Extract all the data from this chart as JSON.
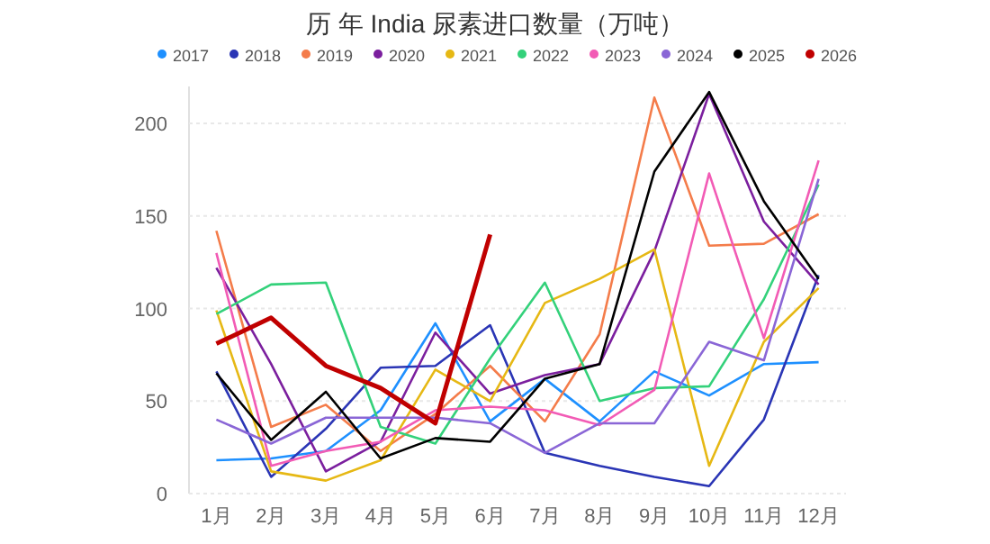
{
  "chart_data": {
    "type": "line",
    "title": "历 年 India 尿素进口数量（万吨）",
    "categories": [
      "1月",
      "2月",
      "3月",
      "4月",
      "5月",
      "6月",
      "7月",
      "8月",
      "9月",
      "10月",
      "11月",
      "12月"
    ],
    "ylim": [
      0,
      220
    ],
    "yticks": [
      0,
      50,
      100,
      150,
      200
    ],
    "grid": "y",
    "legend": "top",
    "marker": "none",
    "series": [
      {
        "name": "2017",
        "color": "#1e90ff",
        "values": [
          18,
          19,
          23,
          45,
          92,
          39,
          62,
          39,
          66,
          53,
          70,
          71
        ]
      },
      {
        "name": "2018",
        "color": "#2a35b5",
        "values": [
          66,
          9,
          35,
          68,
          69,
          91,
          22,
          15,
          9,
          4,
          40,
          118
        ]
      },
      {
        "name": "2019",
        "color": "#f47c4a",
        "values": [
          142,
          36,
          48,
          23,
          43,
          69,
          39,
          86,
          214,
          134,
          135,
          151
        ]
      },
      {
        "name": "2020",
        "color": "#7b1f9e",
        "values": [
          122,
          70,
          12,
          28,
          87,
          54,
          64,
          70,
          131,
          216,
          147,
          113
        ]
      },
      {
        "name": "2021",
        "color": "#e6b814",
        "values": [
          99,
          12,
          7,
          18,
          67,
          50,
          103,
          116,
          132,
          15,
          82,
          111
        ]
      },
      {
        "name": "2022",
        "color": "#33d17a",
        "values": [
          97,
          113,
          114,
          36,
          27,
          73,
          114,
          50,
          57,
          58,
          105,
          167
        ]
      },
      {
        "name": "2023",
        "color": "#f25bb5",
        "values": [
          130,
          15,
          23,
          28,
          45,
          47,
          45,
          37,
          56,
          173,
          84,
          180
        ]
      },
      {
        "name": "2024",
        "color": "#8a66d6",
        "values": [
          40,
          27,
          41,
          41,
          41,
          38,
          22,
          38,
          38,
          82,
          72,
          170
        ]
      },
      {
        "name": "2025",
        "color": "#000000",
        "values": [
          65,
          29,
          55,
          19,
          30,
          28,
          62,
          70,
          174,
          217,
          158,
          116
        ]
      },
      {
        "name": "2026",
        "color": "#c00000",
        "values": [
          81,
          95,
          69,
          57,
          38,
          140,
          null,
          null,
          null,
          null,
          null,
          null
        ]
      }
    ]
  }
}
